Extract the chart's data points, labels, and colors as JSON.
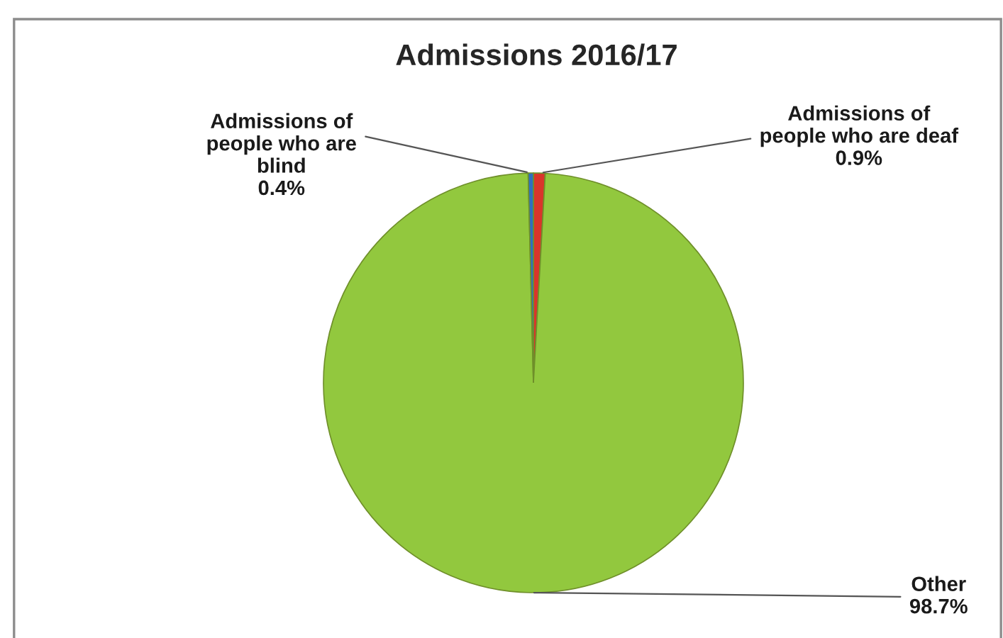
{
  "chart_data": {
    "type": "pie",
    "title": "Admissions 2016/17",
    "categories": [
      "Admissions of\npeople who are deaf",
      "Other",
      "Admissions of\npeople who are\nblind"
    ],
    "values": [
      0.9,
      98.7,
      0.4
    ],
    "value_labels": [
      "0.9%",
      "98.7%",
      "0.4%"
    ],
    "colors": [
      "#d9352b",
      "#92c83e",
      "#2f6fbf"
    ],
    "legend": false
  }
}
